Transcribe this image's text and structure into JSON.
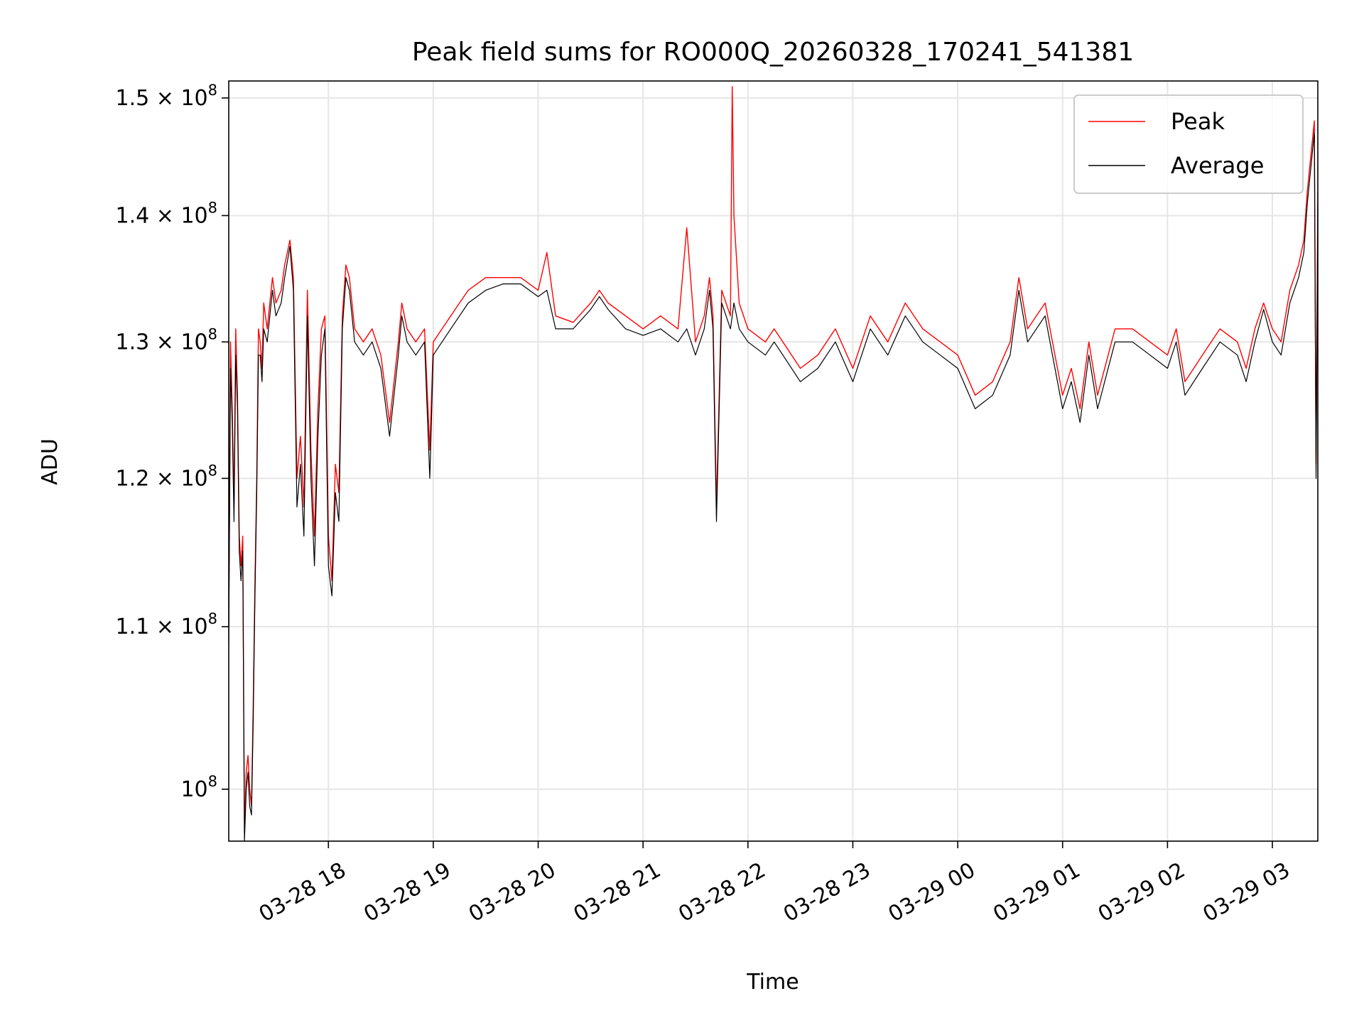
{
  "chart_data": {
    "type": "line",
    "title": "Peak field sums for RO000Q_20260328_170241_541381",
    "xlabel": "Time",
    "ylabel": "ADU",
    "yscale": "log",
    "xlim": [
      "2026-03-28 17:03",
      "2026-03-29 03:26"
    ],
    "ylim": [
      97000000,
      151500000
    ],
    "grid": true,
    "legend_position": "top-right",
    "x_ticks": [
      {
        "value": "2026-03-28 18:00",
        "label": "03-28 18"
      },
      {
        "value": "2026-03-28 19:00",
        "label": "03-28 19"
      },
      {
        "value": "2026-03-28 20:00",
        "label": "03-28 20"
      },
      {
        "value": "2026-03-28 21:00",
        "label": "03-28 21"
      },
      {
        "value": "2026-03-28 22:00",
        "label": "03-28 22"
      },
      {
        "value": "2026-03-28 23:00",
        "label": "03-28 23"
      },
      {
        "value": "2026-03-29 00:00",
        "label": "03-29 00"
      },
      {
        "value": "2026-03-29 01:00",
        "label": "03-29 01"
      },
      {
        "value": "2026-03-29 02:00",
        "label": "03-29 02"
      },
      {
        "value": "2026-03-29 03:00",
        "label": "03-29 03"
      }
    ],
    "y_ticks": [
      {
        "value": 100000000,
        "base": "10",
        "exp": "8"
      },
      {
        "value": 110000000,
        "mantissa": "1.1",
        "base": "10",
        "exp": "8"
      },
      {
        "value": 120000000,
        "mantissa": "1.2",
        "base": "10",
        "exp": "8"
      },
      {
        "value": 130000000,
        "mantissa": "1.3",
        "base": "10",
        "exp": "8"
      },
      {
        "value": 140000000,
        "mantissa": "1.4",
        "base": "10",
        "exp": "8"
      },
      {
        "value": 150000000,
        "mantissa": "1.5",
        "base": "10",
        "exp": "8"
      }
    ],
    "series": [
      {
        "name": "Peak",
        "color": "#ff0000",
        "x": [
          "2026-03-28 17:03",
          "2026-03-28 17:04",
          "2026-03-28 17:05",
          "2026-03-28 17:06",
          "2026-03-28 17:07",
          "2026-03-28 17:08",
          "2026-03-28 17:09",
          "2026-03-28 17:10",
          "2026-03-28 17:11",
          "2026-03-28 17:12",
          "2026-03-28 17:13",
          "2026-03-28 17:14",
          "2026-03-28 17:15",
          "2026-03-28 17:16",
          "2026-03-28 17:17",
          "2026-03-28 17:18",
          "2026-03-28 17:19",
          "2026-03-28 17:20",
          "2026-03-28 17:21",
          "2026-03-28 17:22",
          "2026-03-28 17:23",
          "2026-03-28 17:25",
          "2026-03-28 17:28",
          "2026-03-28 17:30",
          "2026-03-28 17:33",
          "2026-03-28 17:35",
          "2026-03-28 17:38",
          "2026-03-28 17:40",
          "2026-03-28 17:42",
          "2026-03-28 17:44",
          "2026-03-28 17:46",
          "2026-03-28 17:48",
          "2026-03-28 17:50",
          "2026-03-28 17:52",
          "2026-03-28 17:54",
          "2026-03-28 17:56",
          "2026-03-28 17:58",
          "2026-03-28 18:00",
          "2026-03-28 18:02",
          "2026-03-28 18:04",
          "2026-03-28 18:06",
          "2026-03-28 18:08",
          "2026-03-28 18:10",
          "2026-03-28 18:12",
          "2026-03-28 18:15",
          "2026-03-28 18:20",
          "2026-03-28 18:25",
          "2026-03-28 18:30",
          "2026-03-28 18:35",
          "2026-03-28 18:40",
          "2026-03-28 18:42",
          "2026-03-28 18:45",
          "2026-03-28 18:50",
          "2026-03-28 18:55",
          "2026-03-28 18:58",
          "2026-03-28 19:00",
          "2026-03-28 19:05",
          "2026-03-28 19:10",
          "2026-03-28 19:15",
          "2026-03-28 19:20",
          "2026-03-28 19:30",
          "2026-03-28 19:40",
          "2026-03-28 19:50",
          "2026-03-28 20:00",
          "2026-03-28 20:05",
          "2026-03-28 20:10",
          "2026-03-28 20:20",
          "2026-03-28 20:30",
          "2026-03-28 20:35",
          "2026-03-28 20:40",
          "2026-03-28 20:50",
          "2026-03-28 21:00",
          "2026-03-28 21:10",
          "2026-03-28 21:20",
          "2026-03-28 21:25",
          "2026-03-28 21:30",
          "2026-03-28 21:35",
          "2026-03-28 21:38",
          "2026-03-28 21:40",
          "2026-03-28 21:42",
          "2026-03-28 21:45",
          "2026-03-28 21:50",
          "2026-03-28 21:51",
          "2026-03-28 21:52",
          "2026-03-28 21:55",
          "2026-03-28 22:00",
          "2026-03-28 22:10",
          "2026-03-28 22:15",
          "2026-03-28 22:20",
          "2026-03-28 22:30",
          "2026-03-28 22:40",
          "2026-03-28 22:50",
          "2026-03-28 23:00",
          "2026-03-28 23:10",
          "2026-03-28 23:20",
          "2026-03-28 23:30",
          "2026-03-28 23:40",
          "2026-03-28 23:50",
          "2026-03-29 00:00",
          "2026-03-29 00:10",
          "2026-03-29 00:20",
          "2026-03-29 00:30",
          "2026-03-29 00:35",
          "2026-03-29 00:40",
          "2026-03-29 00:50",
          "2026-03-29 01:00",
          "2026-03-29 01:05",
          "2026-03-29 01:10",
          "2026-03-29 01:15",
          "2026-03-29 01:20",
          "2026-03-29 01:30",
          "2026-03-29 01:40",
          "2026-03-29 01:50",
          "2026-03-29 02:00",
          "2026-03-29 02:05",
          "2026-03-29 02:10",
          "2026-03-29 02:20",
          "2026-03-29 02:30",
          "2026-03-29 02:40",
          "2026-03-29 02:45",
          "2026-03-29 02:50",
          "2026-03-29 02:55",
          "2026-03-29 03:00",
          "2026-03-29 03:05",
          "2026-03-29 03:10",
          "2026-03-29 03:15",
          "2026-03-29 03:18",
          "2026-03-29 03:20",
          "2026-03-29 03:22",
          "2026-03-29 03:24",
          "2026-03-29 03:25",
          "2026-03-29 03:26"
        ],
        "y": [
          110000000,
          130000000,
          125000000,
          118000000,
          131000000,
          126000000,
          116000000,
          114000000,
          116000000,
          97500000,
          101000000,
          102000000,
          100000000,
          99000000,
          105000000,
          113000000,
          120000000,
          131000000,
          130000000,
          128000000,
          133000000,
          131000000,
          135000000,
          133000000,
          134000000,
          136000000,
          138000000,
          135000000,
          120000000,
          123000000,
          118000000,
          134000000,
          122000000,
          116000000,
          125000000,
          131000000,
          132000000,
          116000000,
          113000000,
          121000000,
          119000000,
          132000000,
          136000000,
          135000000,
          131000000,
          130000000,
          131000000,
          129000000,
          124000000,
          130000000,
          133000000,
          131000000,
          130000000,
          131000000,
          122000000,
          130000000,
          131000000,
          132000000,
          133000000,
          134000000,
          135000000,
          135000000,
          135000000,
          134000000,
          137000000,
          132000000,
          131500000,
          133000000,
          134000000,
          133000000,
          132000000,
          131000000,
          132000000,
          131000000,
          139000000,
          130000000,
          132000000,
          135000000,
          132000000,
          118000000,
          134000000,
          132000000,
          151000000,
          140000000,
          133000000,
          131000000,
          130000000,
          131000000,
          130000000,
          128000000,
          129000000,
          131000000,
          128000000,
          132000000,
          130000000,
          133000000,
          131000000,
          130000000,
          129000000,
          126000000,
          127000000,
          130000000,
          135000000,
          131000000,
          133000000,
          126000000,
          128000000,
          125000000,
          130000000,
          126000000,
          131000000,
          131000000,
          130000000,
          129000000,
          131000000,
          127000000,
          129000000,
          131000000,
          130000000,
          128000000,
          131000000,
          133000000,
          131000000,
          130000000,
          134000000,
          136000000,
          138000000,
          142000000,
          145000000,
          148000000,
          121000000,
          142000000
        ]
      },
      {
        "name": "Average",
        "color": "#000000",
        "x": [
          "2026-03-28 17:03",
          "2026-03-28 17:04",
          "2026-03-28 17:05",
          "2026-03-28 17:06",
          "2026-03-28 17:07",
          "2026-03-28 17:08",
          "2026-03-28 17:09",
          "2026-03-28 17:10",
          "2026-03-28 17:11",
          "2026-03-28 17:12",
          "2026-03-28 17:13",
          "2026-03-28 17:14",
          "2026-03-28 17:15",
          "2026-03-28 17:16",
          "2026-03-28 17:17",
          "2026-03-28 17:18",
          "2026-03-28 17:19",
          "2026-03-28 17:20",
          "2026-03-28 17:21",
          "2026-03-28 17:22",
          "2026-03-28 17:23",
          "2026-03-28 17:25",
          "2026-03-28 17:28",
          "2026-03-28 17:30",
          "2026-03-28 17:33",
          "2026-03-28 17:35",
          "2026-03-28 17:38",
          "2026-03-28 17:40",
          "2026-03-28 17:42",
          "2026-03-28 17:44",
          "2026-03-28 17:46",
          "2026-03-28 17:48",
          "2026-03-28 17:50",
          "2026-03-28 17:52",
          "2026-03-28 17:54",
          "2026-03-28 17:56",
          "2026-03-28 17:58",
          "2026-03-28 18:00",
          "2026-03-28 18:02",
          "2026-03-28 18:04",
          "2026-03-28 18:06",
          "2026-03-28 18:08",
          "2026-03-28 18:10",
          "2026-03-28 18:12",
          "2026-03-28 18:15",
          "2026-03-28 18:20",
          "2026-03-28 18:25",
          "2026-03-28 18:30",
          "2026-03-28 18:35",
          "2026-03-28 18:40",
          "2026-03-28 18:42",
          "2026-03-28 18:45",
          "2026-03-28 18:50",
          "2026-03-28 18:55",
          "2026-03-28 18:58",
          "2026-03-28 19:00",
          "2026-03-28 19:05",
          "2026-03-28 19:10",
          "2026-03-28 19:15",
          "2026-03-28 19:20",
          "2026-03-28 19:30",
          "2026-03-28 19:40",
          "2026-03-28 19:50",
          "2026-03-28 20:00",
          "2026-03-28 20:05",
          "2026-03-28 20:10",
          "2026-03-28 20:20",
          "2026-03-28 20:30",
          "2026-03-28 20:35",
          "2026-03-28 20:40",
          "2026-03-28 20:50",
          "2026-03-28 21:00",
          "2026-03-28 21:10",
          "2026-03-28 21:20",
          "2026-03-28 21:25",
          "2026-03-28 21:30",
          "2026-03-28 21:35",
          "2026-03-28 21:38",
          "2026-03-28 21:40",
          "2026-03-28 21:42",
          "2026-03-28 21:45",
          "2026-03-28 21:50",
          "2026-03-28 21:51",
          "2026-03-28 21:52",
          "2026-03-28 21:55",
          "2026-03-28 22:00",
          "2026-03-28 22:10",
          "2026-03-28 22:15",
          "2026-03-28 22:20",
          "2026-03-28 22:30",
          "2026-03-28 22:40",
          "2026-03-28 22:50",
          "2026-03-28 23:00",
          "2026-03-28 23:10",
          "2026-03-28 23:20",
          "2026-03-28 23:30",
          "2026-03-28 23:40",
          "2026-03-28 23:50",
          "2026-03-29 00:00",
          "2026-03-29 00:10",
          "2026-03-29 00:20",
          "2026-03-29 00:30",
          "2026-03-29 00:35",
          "2026-03-29 00:40",
          "2026-03-29 00:50",
          "2026-03-29 01:00",
          "2026-03-29 01:05",
          "2026-03-29 01:10",
          "2026-03-29 01:15",
          "2026-03-29 01:20",
          "2026-03-29 01:30",
          "2026-03-29 01:40",
          "2026-03-29 01:50",
          "2026-03-29 02:00",
          "2026-03-29 02:05",
          "2026-03-29 02:10",
          "2026-03-29 02:20",
          "2026-03-29 02:30",
          "2026-03-29 02:40",
          "2026-03-29 02:45",
          "2026-03-29 02:50",
          "2026-03-29 02:55",
          "2026-03-29 03:00",
          "2026-03-29 03:05",
          "2026-03-29 03:10",
          "2026-03-29 03:15",
          "2026-03-29 03:18",
          "2026-03-29 03:20",
          "2026-03-29 03:22",
          "2026-03-29 03:24",
          "2026-03-29 03:25",
          "2026-03-29 03:26"
        ],
        "y": [
          109000000,
          128000000,
          124000000,
          117000000,
          129000000,
          125000000,
          115000000,
          113000000,
          115000000,
          97000000,
          100000000,
          101000000,
          99000000,
          98500000,
          104000000,
          112000000,
          119000000,
          129000000,
          129000000,
          127000000,
          131000000,
          130000000,
          134000000,
          132000000,
          133000000,
          135000000,
          137500000,
          134000000,
          118000000,
          121000000,
          116000000,
          132000000,
          120000000,
          114000000,
          123000000,
          129000000,
          131000000,
          114000000,
          112000000,
          119000000,
          117000000,
          131000000,
          135000000,
          134000000,
          130000000,
          129000000,
          130000000,
          128000000,
          123000000,
          129000000,
          132000000,
          130000000,
          129000000,
          130000000,
          120000000,
          129000000,
          130000000,
          131000000,
          132000000,
          133000000,
          134000000,
          134500000,
          134500000,
          133500000,
          134000000,
          131000000,
          131000000,
          132500000,
          133500000,
          132500000,
          131000000,
          130500000,
          131000000,
          130000000,
          131000000,
          129000000,
          131000000,
          134000000,
          131000000,
          117000000,
          133000000,
          131000000,
          132000000,
          133000000,
          131000000,
          130000000,
          129000000,
          130000000,
          129000000,
          127000000,
          128000000,
          130000000,
          127000000,
          131000000,
          129000000,
          132000000,
          130000000,
          129000000,
          128000000,
          125000000,
          126000000,
          129000000,
          134000000,
          130000000,
          132000000,
          125000000,
          127000000,
          124000000,
          129000000,
          125000000,
          130000000,
          130000000,
          129000000,
          128000000,
          130000000,
          126000000,
          128000000,
          130000000,
          129000000,
          127000000,
          130000000,
          132500000,
          130000000,
          129000000,
          133000000,
          135000000,
          137000000,
          141000000,
          144000000,
          147000000,
          120000000,
          141000000
        ]
      }
    ]
  }
}
